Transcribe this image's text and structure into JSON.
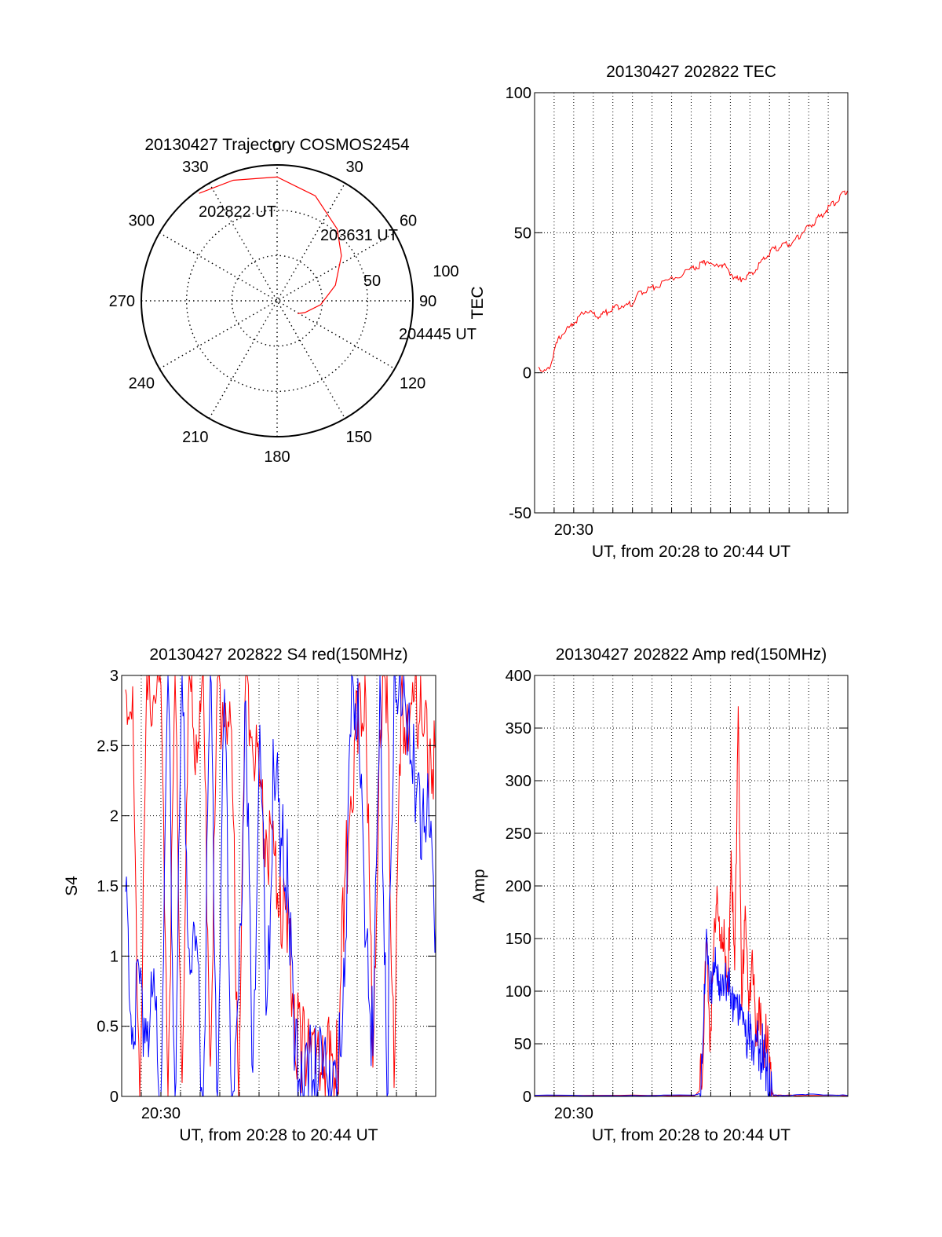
{
  "chart_data": [
    {
      "type": "polar",
      "title": "20130427 Trajectory COSMOS2454",
      "azimuth_labels": [
        "0",
        "30",
        "60",
        "90",
        "120",
        "150",
        "180",
        "210",
        "240",
        "270",
        "300",
        "330"
      ],
      "radial_labels": [
        "50",
        "100"
      ],
      "point_labels": [
        "202822 UT",
        "203631 UT",
        "204445 UT"
      ],
      "trajectory": {
        "color": "#ff0000",
        "points": [
          [
            -36,
            88
          ],
          [
            -20,
            85
          ],
          [
            0,
            82
          ],
          [
            20,
            74
          ],
          [
            40,
            62
          ],
          [
            55,
            52
          ],
          [
            75,
            40
          ],
          [
            95,
            29
          ],
          [
            113,
            20
          ],
          [
            122,
            16
          ]
        ]
      },
      "grid": true
    },
    {
      "type": "line",
      "title": "20130427 202822 TEC",
      "xlabel": "UT, from 20:28 to 20:44 UT",
      "ylabel": "TEC",
      "xtick_labels": [
        "20:30"
      ],
      "ytick_labels": [
        "-50",
        "0",
        "50",
        "100"
      ],
      "xlim": [
        20.4667,
        20.7333
      ],
      "ylim": [
        -50,
        100
      ],
      "grid": true,
      "series": [
        {
          "color": "#ff0000",
          "x": [
            20.47,
            20.475,
            20.48,
            20.485,
            20.49,
            20.496,
            20.5,
            20.505,
            20.51,
            20.515,
            20.52,
            20.525,
            20.53,
            20.535,
            20.54,
            20.545,
            20.55,
            20.555,
            20.56,
            20.565,
            20.57,
            20.58,
            20.59,
            20.6,
            20.605,
            20.61,
            20.613,
            20.62,
            20.625,
            20.629,
            20.635,
            20.64,
            20.645,
            20.65,
            20.655,
            20.66,
            20.665,
            20.67,
            20.675,
            20.68,
            20.685,
            20.69,
            20.695,
            20.7,
            20.705,
            20.71,
            20.715,
            20.72,
            20.725,
            20.73,
            20.7333
          ],
          "y": [
            2,
            0,
            3,
            10,
            14,
            16,
            18,
            20,
            22,
            21,
            20,
            21,
            22,
            23,
            24,
            24,
            25,
            28,
            29,
            30,
            31,
            33,
            35,
            37,
            38,
            39,
            40,
            38,
            39,
            38,
            35,
            33,
            34,
            35,
            37,
            40,
            42,
            44,
            45,
            46,
            46,
            48,
            50,
            52,
            54,
            56,
            58,
            60,
            62,
            64,
            65
          ]
        }
      ]
    },
    {
      "type": "line",
      "title": "20130427 202822 S4 red(150MHz)",
      "xlabel": "UT, from 20:28 to 20:44 UT",
      "ylabel": "S4",
      "xtick_labels": [
        "20:30"
      ],
      "ytick_labels": [
        "0",
        "0.5",
        "1",
        "1.5",
        "2",
        "2.5",
        "3"
      ],
      "xlim": [
        20.4667,
        20.7333
      ],
      "ylim": [
        0,
        3
      ],
      "grid": true,
      "series": [
        {
          "color": "#ff0000",
          "x": [
            20.47,
            20.476,
            20.482,
            20.488,
            20.494,
            20.5,
            20.506,
            20.512,
            20.518,
            20.524,
            20.53,
            20.536,
            20.542,
            20.548,
            20.554,
            20.56,
            20.566,
            20.572,
            20.578,
            20.584,
            20.59,
            20.596,
            20.602,
            20.608,
            20.614,
            20.62,
            20.626,
            20.632,
            20.638,
            20.644,
            20.65,
            20.656,
            20.662,
            20.668,
            20.674,
            20.68,
            20.686,
            20.692,
            20.698,
            20.704,
            20.71,
            20.716,
            20.722,
            20.728,
            20.7333
          ],
          "y": [
            2.9,
            2.6,
            0.1,
            2.8,
            3.0,
            2.9,
            0.2,
            2.9,
            0.1,
            2.8,
            2.6,
            2.8,
            0.3,
            2.7,
            2.9,
            2.4,
            0.2,
            2.8,
            2.6,
            2.1,
            1.9,
            1.7,
            1.4,
            1.2,
            0.5,
            0.35,
            0.45,
            0.3,
            0.3,
            0.25,
            0.2,
            1.5,
            2.2,
            2.8,
            2.9,
            0.1,
            2.7,
            2.9,
            0.2,
            2.8,
            2.6,
            2.9,
            2.6,
            2.4,
            2.5
          ]
        },
        {
          "color": "#0000ff",
          "x": [
            20.47,
            20.476,
            20.482,
            20.488,
            20.494,
            20.5,
            20.506,
            20.512,
            20.518,
            20.524,
            20.53,
            20.536,
            20.542,
            20.548,
            20.554,
            20.56,
            20.566,
            20.572,
            20.578,
            20.584,
            20.59,
            20.596,
            20.602,
            20.608,
            20.614,
            20.62,
            20.626,
            20.632,
            20.638,
            20.644,
            20.65,
            20.656,
            20.662,
            20.668,
            20.674,
            20.68,
            20.686,
            20.692,
            20.698,
            20.704,
            20.71,
            20.716,
            20.722,
            20.728,
            20.7333
          ],
          "y": [
            1.4,
            0.6,
            0.65,
            0.6,
            0.6,
            0.0,
            3.0,
            0.0,
            2.9,
            1.1,
            1.0,
            0.0,
            3.0,
            0.0,
            2.8,
            0.0,
            0.6,
            2.9,
            0.0,
            2.7,
            0.5,
            2.5,
            1.8,
            1.6,
            0.2,
            0.25,
            0.2,
            0.2,
            0.2,
            0.2,
            0.0,
            1.0,
            2.9,
            2.8,
            1.0,
            0.4,
            2.9,
            0.0,
            2.8,
            2.9,
            2.7,
            2.3,
            1.9,
            2.1,
            1.2
          ]
        }
      ]
    },
    {
      "type": "line",
      "title": "20130427 202822 Amp red(150MHz)",
      "xlabel": "UT, from 20:28 to 20:44 UT",
      "ylabel": "Amp",
      "xtick_labels": [
        "20:30"
      ],
      "ytick_labels": [
        "0",
        "50",
        "100",
        "150",
        "200",
        "250",
        "300",
        "350",
        "400"
      ],
      "xlim": [
        20.4667,
        20.7333
      ],
      "ylim": [
        0,
        400
      ],
      "grid": true,
      "series": [
        {
          "color": "#ff0000",
          "x": [
            20.4667,
            20.55,
            20.603,
            20.607,
            20.61,
            20.613,
            20.616,
            20.619,
            20.622,
            20.625,
            20.628,
            20.631,
            20.634,
            20.637,
            20.64,
            20.643,
            20.646,
            20.649,
            20.652,
            20.655,
            20.658,
            20.661,
            20.664,
            20.667,
            20.67,
            20.68,
            20.7,
            20.7333
          ],
          "y": [
            1,
            1,
            1,
            5,
            40,
            150,
            60,
            130,
            200,
            120,
            170,
            80,
            240,
            100,
            390,
            70,
            200,
            60,
            150,
            40,
            100,
            30,
            70,
            20,
            1,
            1,
            1,
            1
          ]
        },
        {
          "color": "#0000ff",
          "x": [
            20.4667,
            20.55,
            20.603,
            20.607,
            20.61,
            20.613,
            20.616,
            20.619,
            20.622,
            20.625,
            20.628,
            20.631,
            20.634,
            20.637,
            20.64,
            20.643,
            20.646,
            20.649,
            20.652,
            20.655,
            20.658,
            20.661,
            20.664,
            20.667,
            20.67,
            20.68,
            20.7,
            20.7333
          ],
          "y": [
            1,
            1,
            1,
            3,
            30,
            170,
            80,
            140,
            100,
            120,
            90,
            130,
            70,
            110,
            60,
            100,
            50,
            70,
            40,
            60,
            35,
            50,
            25,
            10,
            1,
            1,
            2,
            1
          ]
        }
      ]
    }
  ]
}
